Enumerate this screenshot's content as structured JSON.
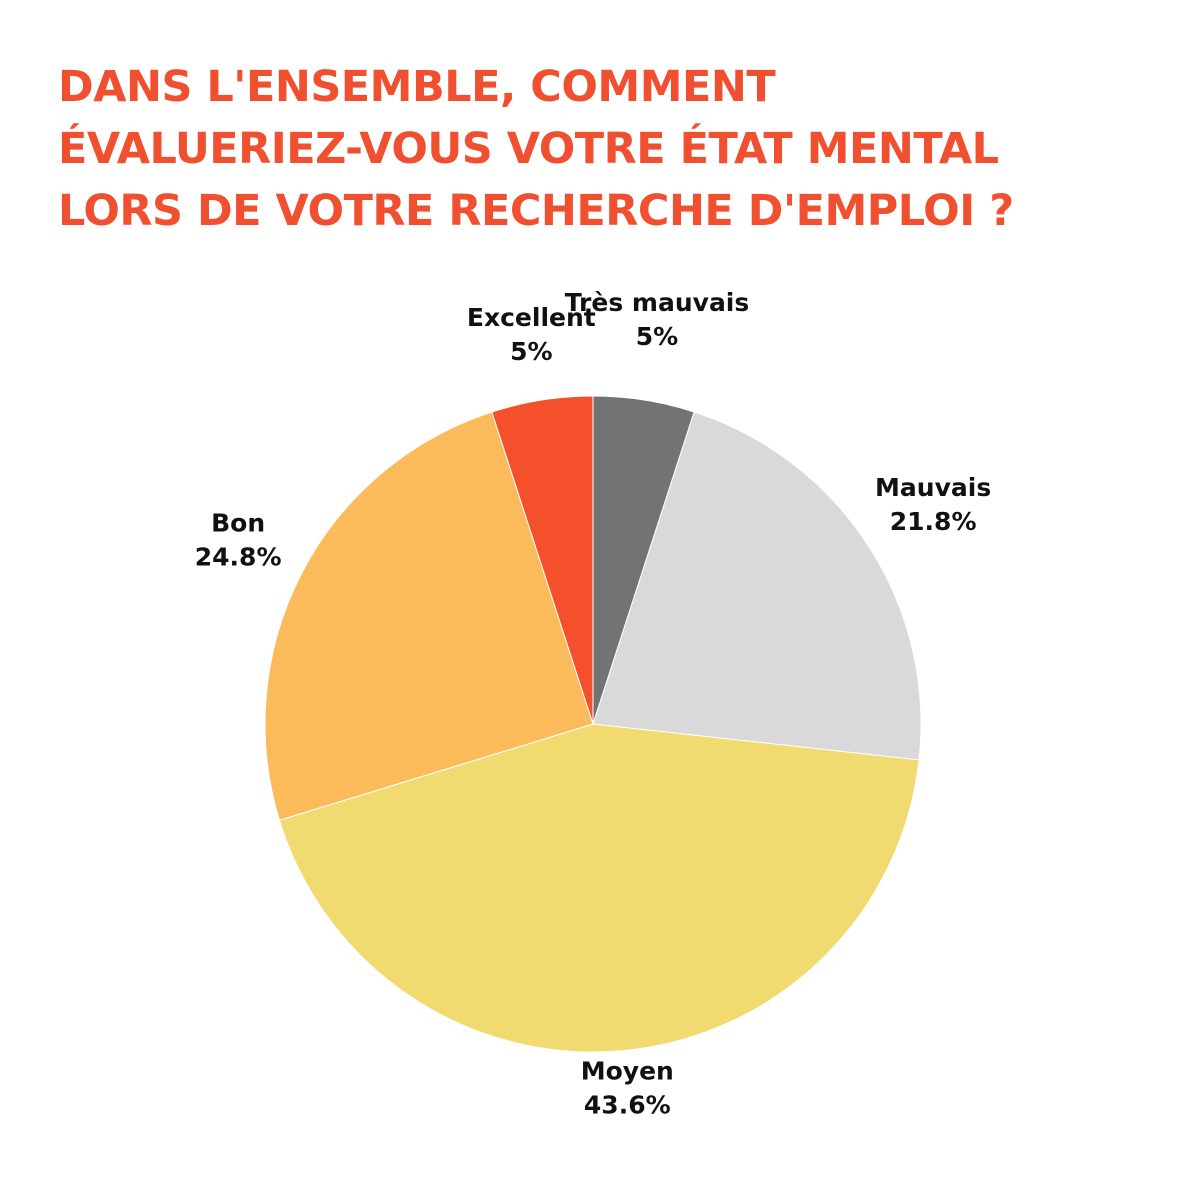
{
  "chart_data": {
    "type": "pie",
    "title": [
      "DANS L'ENSEMBLE, COMMENT",
      "ÉVALUERIEZ-VOUS VOTRE ÉTAT MENTAL",
      "LORS DE VOTRE RECHERCHE D'EMPLOI ?"
    ],
    "start": "top",
    "direction": "clockwise",
    "slices": [
      {
        "label": "Très mauvais",
        "value": 5,
        "value_label": "5%",
        "color": "#737373"
      },
      {
        "label": "Mauvais",
        "value": 21.8,
        "value_label": "21.8%",
        "color": "#d9d9d9"
      },
      {
        "label": "Moyen",
        "value": 43.6,
        "value_label": "43.6%",
        "color": "#f1da70"
      },
      {
        "label": "Bon",
        "value": 24.8,
        "value_label": "24.8%",
        "color": "#fbbb5a"
      },
      {
        "label": "Excellent",
        "value": 5,
        "value_label": "5%",
        "color": "#f4502c"
      }
    ]
  },
  "colors": {
    "title": "#f05030",
    "label_text": "#111111",
    "background": "#ffffff"
  }
}
